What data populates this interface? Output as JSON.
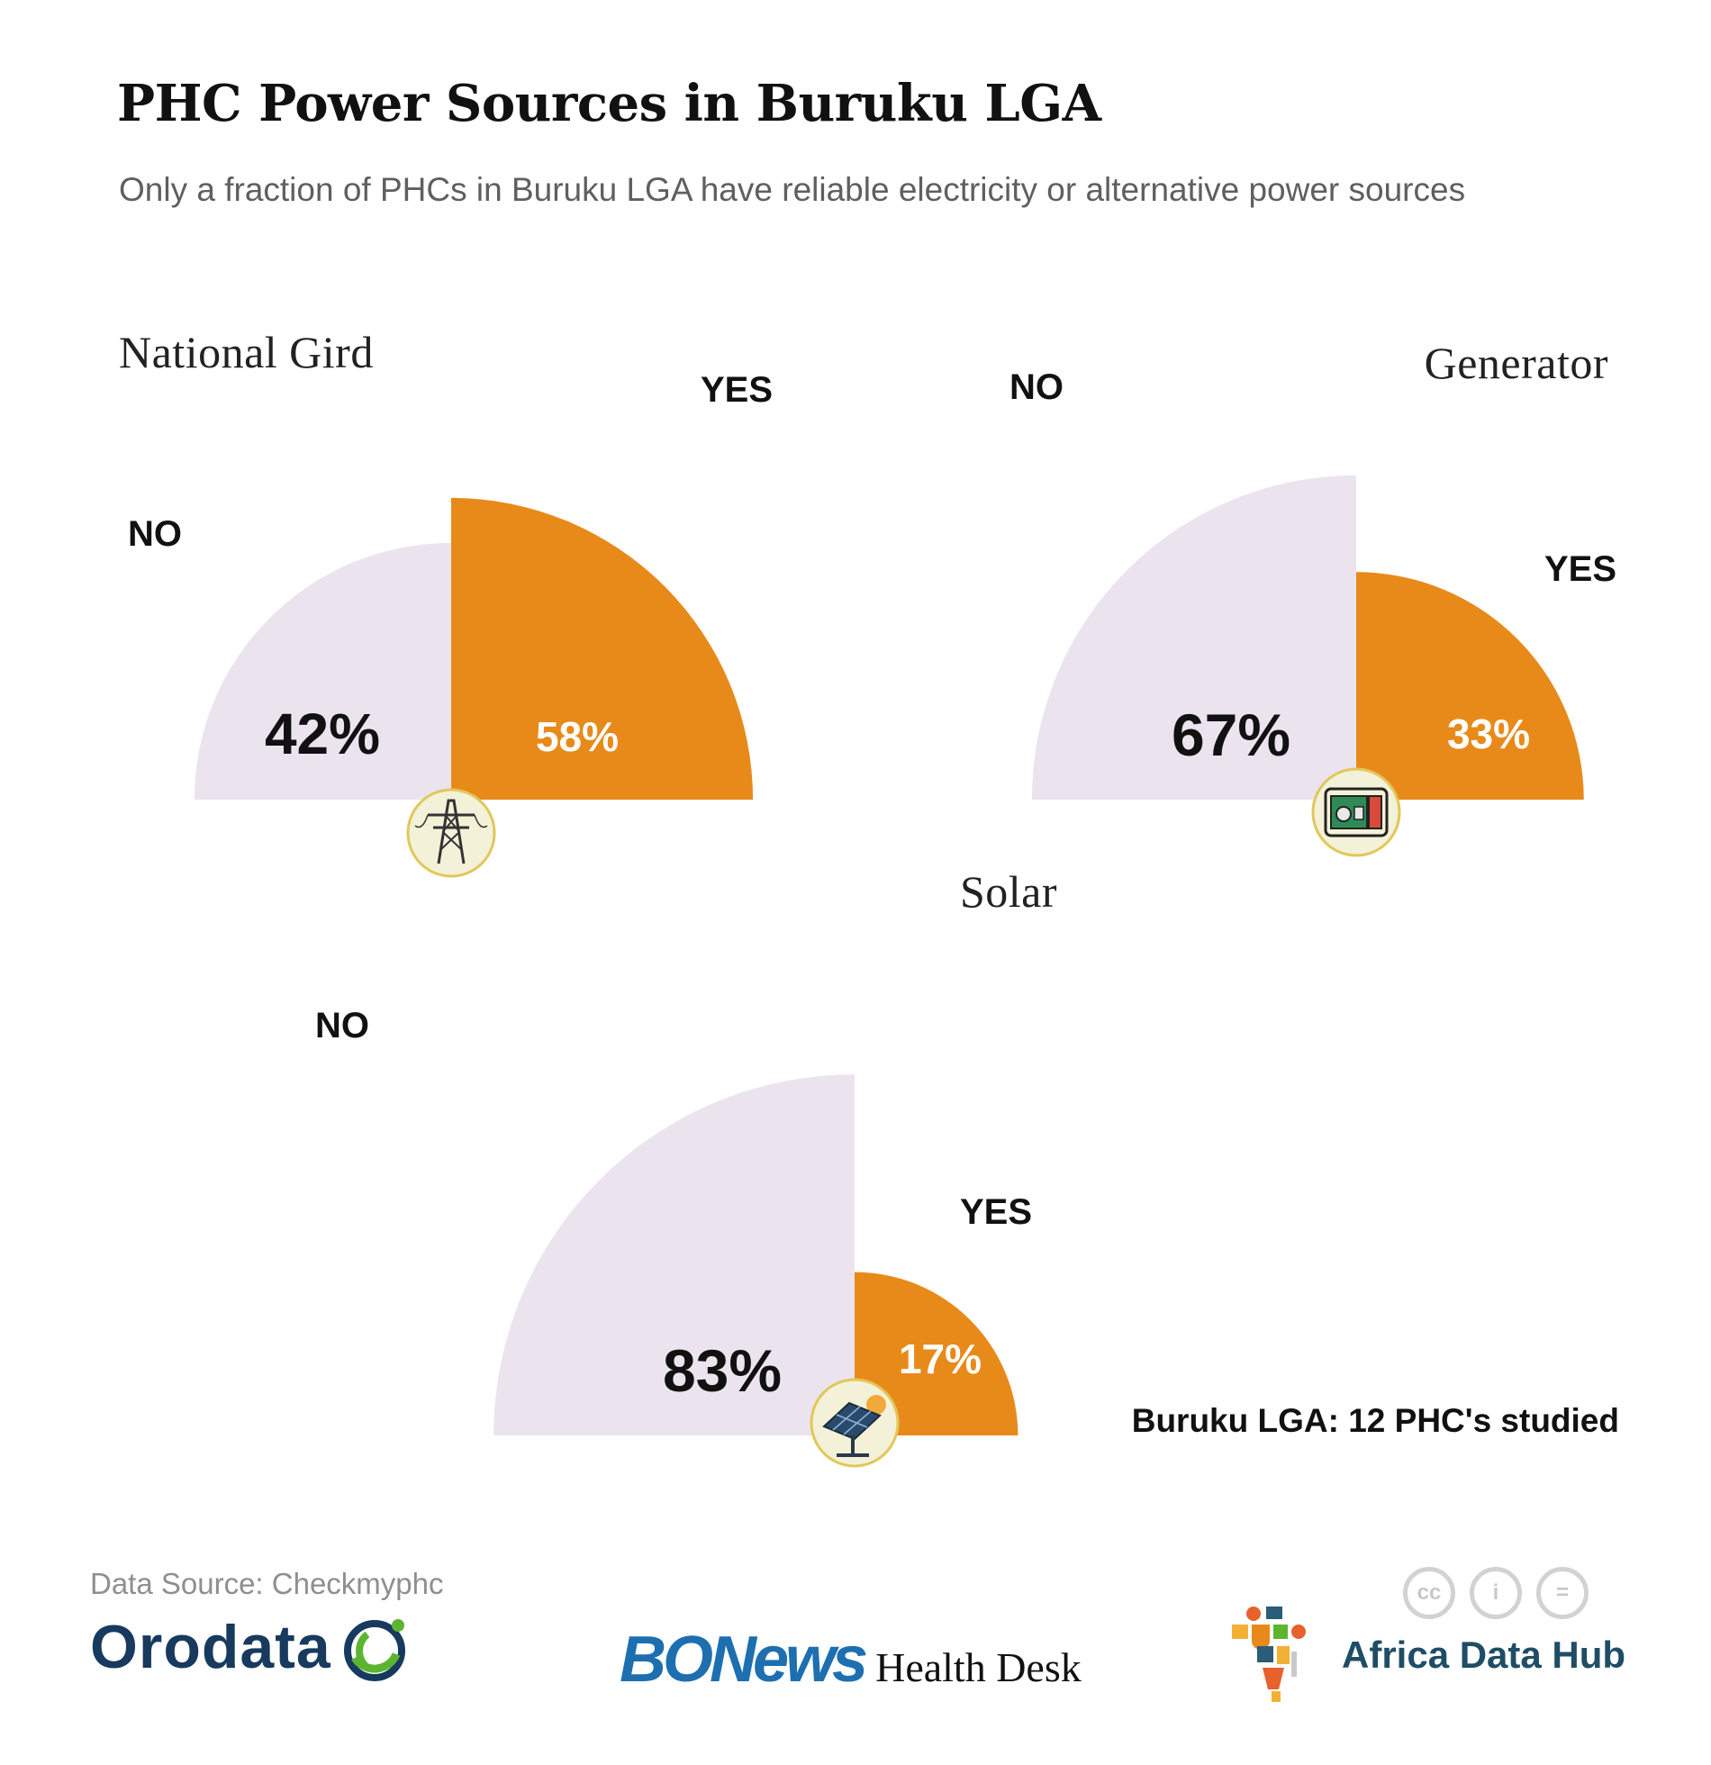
{
  "header": {
    "title": "PHC Power Sources in Buruku LGA",
    "subtitle": "Only a fraction of PHCs in Buruku LGA have reliable electricity or alternative power sources"
  },
  "chart_data": [
    {
      "type": "pie",
      "title": "National Gird",
      "categories": [
        "NO",
        "YES"
      ],
      "values": [
        42,
        58
      ],
      "value_labels": [
        "42%",
        "58%"
      ],
      "icon": "transmission-tower-icon"
    },
    {
      "type": "pie",
      "title": "Generator",
      "categories": [
        "NO",
        "YES"
      ],
      "values": [
        67,
        33
      ],
      "value_labels": [
        "67%",
        "33%"
      ],
      "icon": "generator-icon"
    },
    {
      "type": "pie",
      "title": "Solar",
      "categories": [
        "NO",
        "YES"
      ],
      "values": [
        83,
        17
      ],
      "value_labels": [
        "83%",
        "17%"
      ],
      "icon": "solar-panel-icon"
    }
  ],
  "colors": {
    "no": "#ebe4ef",
    "yes": "#e88a1a",
    "icon_fill": "#f3f1d8",
    "icon_border": "#e2c75a"
  },
  "note": "Buruku LGA: 12 PHC's studied",
  "footer": {
    "source": "Data Source: Checkmyphc",
    "orodata": "Orodata",
    "bon": "BONews",
    "health_desk": "Health Desk",
    "adh": "Africa Data Hub",
    "cc_icons": [
      "cc",
      "i",
      "="
    ]
  }
}
